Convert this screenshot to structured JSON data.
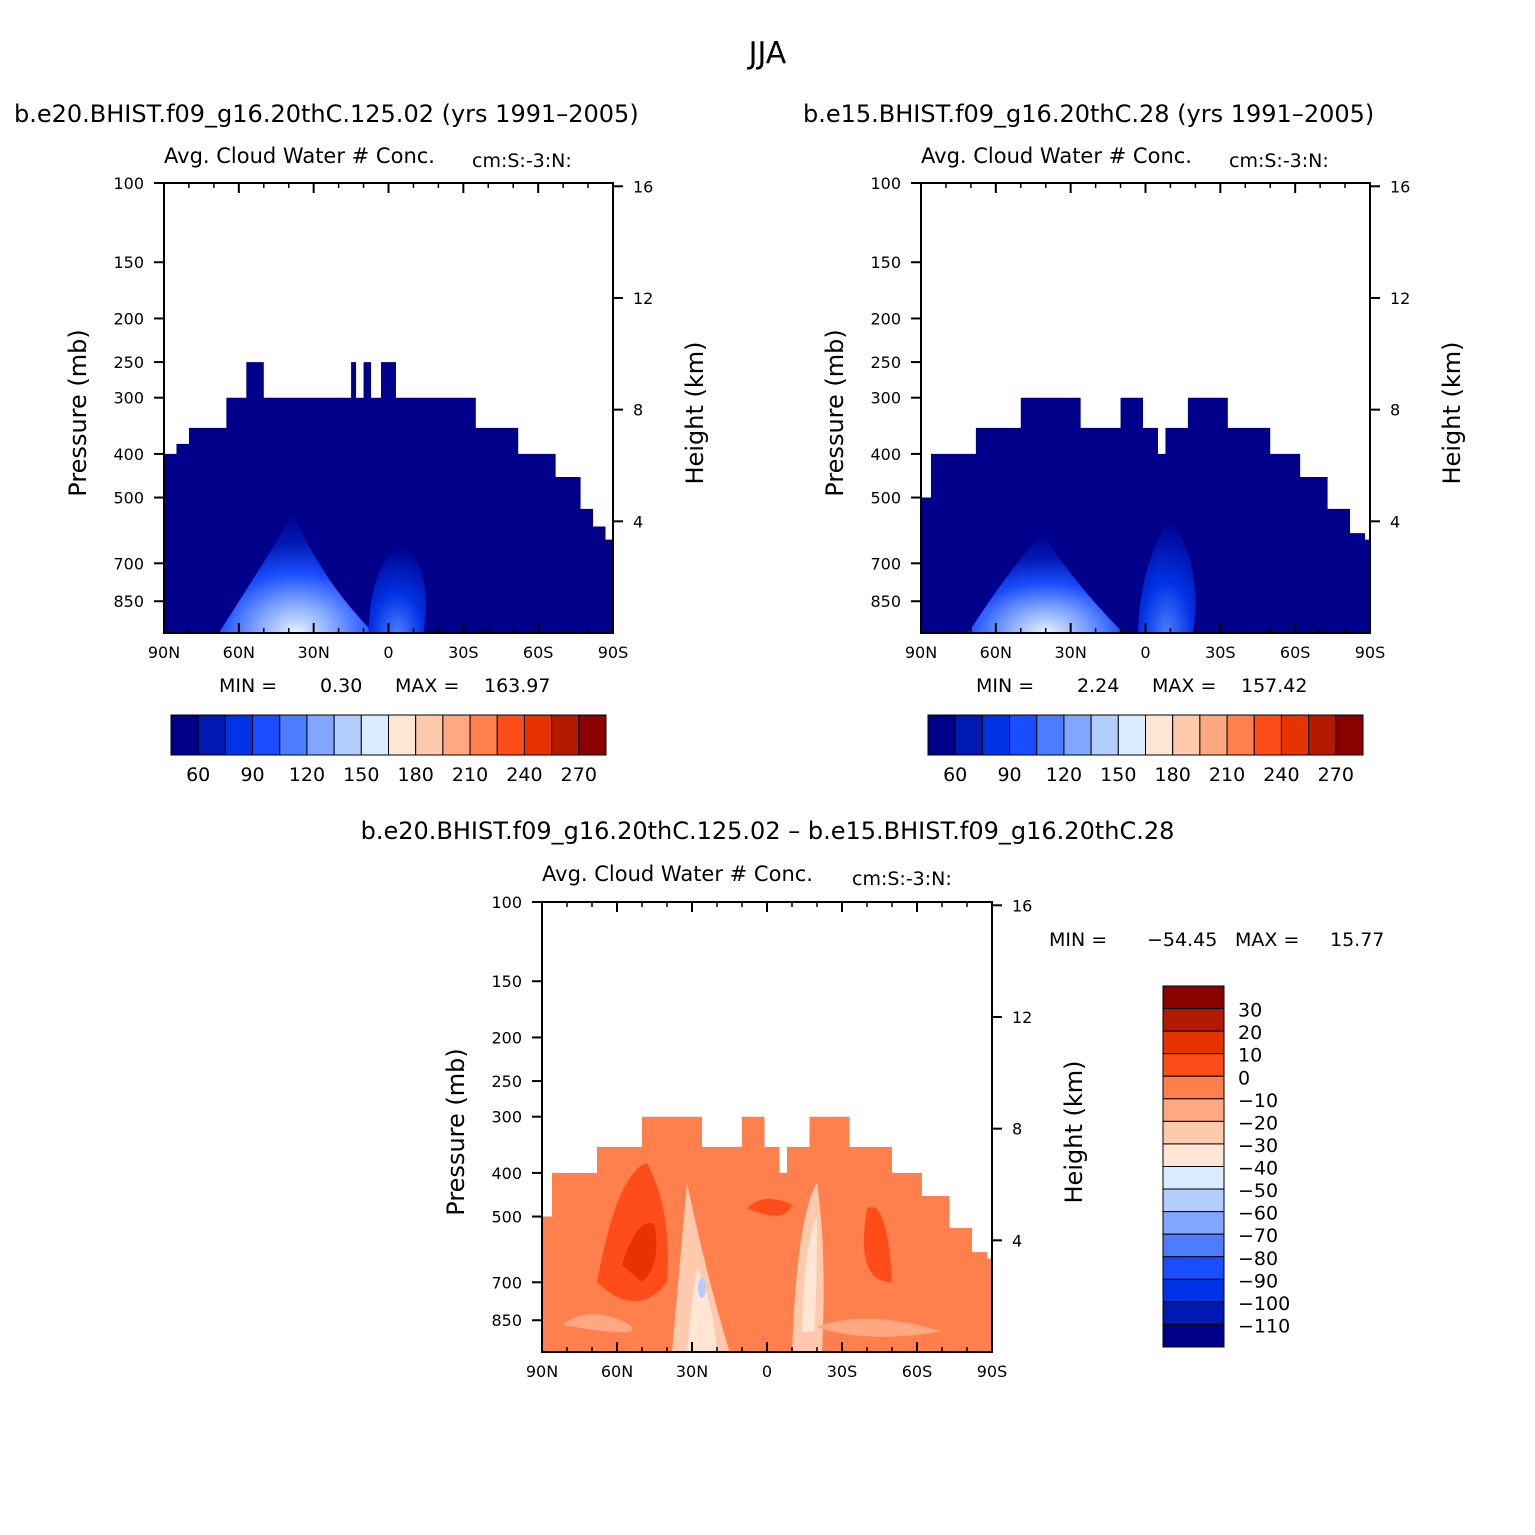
{
  "figure": {
    "title": "JJA"
  },
  "chart_data": [
    {
      "type": "heatmap",
      "title": "b.e20.BHIST.f09_g16.20thC.125.02 (yrs 1991–2005)",
      "subtitle_left": "Avg. Cloud Water # Conc.",
      "subtitle_right": "cm:S:-3:N:",
      "xlabel": "",
      "ylabel": "Pressure (mb)",
      "ylabel_right": "Height (km)",
      "x_ticks": [
        "90N",
        "60N",
        "30N",
        "0",
        "30S",
        "60S",
        "90S"
      ],
      "y_ticks": [
        100,
        150,
        200,
        250,
        300,
        400,
        500,
        700,
        850
      ],
      "y_right_ticks": [
        16,
        12,
        8,
        4
      ],
      "ylim": [
        100,
        1000
      ],
      "min_label": "MIN =",
      "min_value": "0.30",
      "max_label": "MAX =",
      "max_value": "163.97",
      "colorbar": {
        "orientation": "horizontal",
        "levels": [
          "60",
          "90",
          "120",
          "150",
          "180",
          "210",
          "240",
          "270"
        ],
        "colors": [
          "#00008b",
          "#0019b3",
          "#0033e6",
          "#1a4dff",
          "#4d7dff",
          "#80a6ff",
          "#b3cdff",
          "#d9ebff",
          "#ffe6d4",
          "#ffc9ad",
          "#ffa882",
          "#ff7f4d",
          "#ff4d1a",
          "#e63300",
          "#b31a00",
          "#8b0000"
        ]
      },
      "top_profile": [
        [
          90,
          400
        ],
        [
          85,
          400
        ],
        [
          85,
          380
        ],
        [
          80,
          380
        ],
        [
          80,
          350
        ],
        [
          65,
          350
        ],
        [
          65,
          300
        ],
        [
          57,
          300
        ],
        [
          57,
          250
        ],
        [
          50,
          250
        ],
        [
          50,
          300
        ],
        [
          15,
          300
        ],
        [
          15,
          250
        ],
        [
          13,
          250
        ],
        [
          13,
          300
        ],
        [
          10,
          300
        ],
        [
          10,
          250
        ],
        [
          7,
          250
        ],
        [
          7,
          300
        ],
        [
          3,
          300
        ],
        [
          3,
          250
        ],
        [
          -3,
          250
        ],
        [
          -3,
          300
        ],
        [
          -35,
          300
        ],
        [
          -35,
          350
        ],
        [
          -52,
          350
        ],
        [
          -52,
          400
        ],
        [
          -67,
          400
        ],
        [
          -67,
          450
        ],
        [
          -77,
          450
        ],
        [
          -77,
          530
        ],
        [
          -82,
          530
        ],
        [
          -82,
          580
        ],
        [
          -87,
          580
        ],
        [
          -87,
          620
        ],
        [
          -90,
          620
        ]
      ]
    },
    {
      "type": "heatmap",
      "title": "b.e15.BHIST.f09_g16.20thC.28 (yrs 1991–2005)",
      "subtitle_left": "Avg. Cloud Water # Conc.",
      "subtitle_right": "cm:S:-3:N:",
      "xlabel": "",
      "ylabel": "Pressure (mb)",
      "ylabel_right": "Height (km)",
      "x_ticks": [
        "90N",
        "60N",
        "30N",
        "0",
        "30S",
        "60S",
        "90S"
      ],
      "y_ticks": [
        100,
        150,
        200,
        250,
        300,
        400,
        500,
        700,
        850
      ],
      "y_right_ticks": [
        16,
        12,
        8,
        4
      ],
      "ylim": [
        100,
        1000
      ],
      "min_label": "MIN =",
      "min_value": "2.24",
      "max_label": "MAX =",
      "max_value": "157.42",
      "colorbar": {
        "orientation": "horizontal",
        "levels": [
          "60",
          "90",
          "120",
          "150",
          "180",
          "210",
          "240",
          "270"
        ],
        "colors": [
          "#00008b",
          "#0019b3",
          "#0033e6",
          "#1a4dff",
          "#4d7dff",
          "#80a6ff",
          "#b3cdff",
          "#d9ebff",
          "#ffe6d4",
          "#ffc9ad",
          "#ffa882",
          "#ff7f4d",
          "#ff4d1a",
          "#e63300",
          "#b31a00",
          "#8b0000"
        ]
      },
      "top_profile": [
        [
          90,
          500
        ],
        [
          86,
          500
        ],
        [
          86,
          400
        ],
        [
          68,
          400
        ],
        [
          68,
          350
        ],
        [
          50,
          350
        ],
        [
          50,
          300
        ],
        [
          26,
          300
        ],
        [
          26,
          350
        ],
        [
          10,
          350
        ],
        [
          10,
          300
        ],
        [
          1,
          300
        ],
        [
          1,
          350
        ],
        [
          -5,
          350
        ],
        [
          -5,
          400
        ],
        [
          -8,
          400
        ],
        [
          -8,
          350
        ],
        [
          -17,
          350
        ],
        [
          -17,
          300
        ],
        [
          -33,
          300
        ],
        [
          -33,
          350
        ],
        [
          -50,
          350
        ],
        [
          -50,
          400
        ],
        [
          -62,
          400
        ],
        [
          -62,
          450
        ],
        [
          -73,
          450
        ],
        [
          -73,
          530
        ],
        [
          -82,
          530
        ],
        [
          -82,
          600
        ],
        [
          -88,
          600
        ],
        [
          -88,
          620
        ],
        [
          -90,
          620
        ]
      ]
    },
    {
      "type": "heatmap",
      "title": "b.e20.BHIST.f09_g16.20thC.125.02 – b.e15.BHIST.f09_g16.20thC.28",
      "subtitle_left": "Avg. Cloud Water # Conc.",
      "subtitle_right": "cm:S:-3:N:",
      "xlabel": "",
      "ylabel": "Pressure (mb)",
      "ylabel_right": "Height (km)",
      "x_ticks": [
        "90N",
        "60N",
        "30N",
        "0",
        "30S",
        "60S",
        "90S"
      ],
      "y_ticks": [
        100,
        150,
        200,
        250,
        300,
        400,
        500,
        700,
        850
      ],
      "y_right_ticks": [
        16,
        12,
        8,
        4
      ],
      "ylim": [
        100,
        1000
      ],
      "min_label": "MIN =",
      "min_value": "−54.45",
      "max_label": "MAX =",
      "max_value": "15.77",
      "colorbar": {
        "orientation": "vertical",
        "levels": [
          "30",
          "20",
          "10",
          "0",
          "−10",
          "−20",
          "−30",
          "−40",
          "−50",
          "−60",
          "−70",
          "−80",
          "−90",
          "−100",
          "−110"
        ],
        "colors": [
          "#8b0000",
          "#b31a00",
          "#e63300",
          "#ff4d1a",
          "#ff7f4d",
          "#ffa882",
          "#ffc9ad",
          "#ffe6d4",
          "#d9ebff",
          "#b3cdff",
          "#80a6ff",
          "#4d7dff",
          "#1a4dff",
          "#0033e6",
          "#0019b3",
          "#00008b"
        ]
      },
      "top_profile": [
        [
          90,
          500
        ],
        [
          86,
          500
        ],
        [
          86,
          400
        ],
        [
          68,
          400
        ],
        [
          68,
          350
        ],
        [
          50,
          350
        ],
        [
          50,
          300
        ],
        [
          26,
          300
        ],
        [
          26,
          350
        ],
        [
          10,
          350
        ],
        [
          10,
          300
        ],
        [
          1,
          300
        ],
        [
          1,
          350
        ],
        [
          -5,
          350
        ],
        [
          -5,
          400
        ],
        [
          -8,
          400
        ],
        [
          -8,
          350
        ],
        [
          -17,
          350
        ],
        [
          -17,
          300
        ],
        [
          -33,
          300
        ],
        [
          -33,
          350
        ],
        [
          -50,
          350
        ],
        [
          -50,
          400
        ],
        [
          -62,
          400
        ],
        [
          -62,
          450
        ],
        [
          -73,
          450
        ],
        [
          -73,
          530
        ],
        [
          -82,
          530
        ],
        [
          -82,
          600
        ],
        [
          -88,
          600
        ],
        [
          -88,
          620
        ],
        [
          -90,
          620
        ]
      ]
    }
  ]
}
